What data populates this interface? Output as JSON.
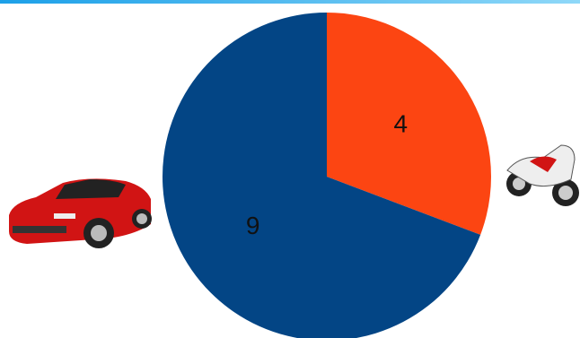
{
  "chart_data": {
    "type": "pie",
    "values": [
      4,
      9
    ],
    "colors": [
      "#fc4512",
      "#034585"
    ]
  }
}
